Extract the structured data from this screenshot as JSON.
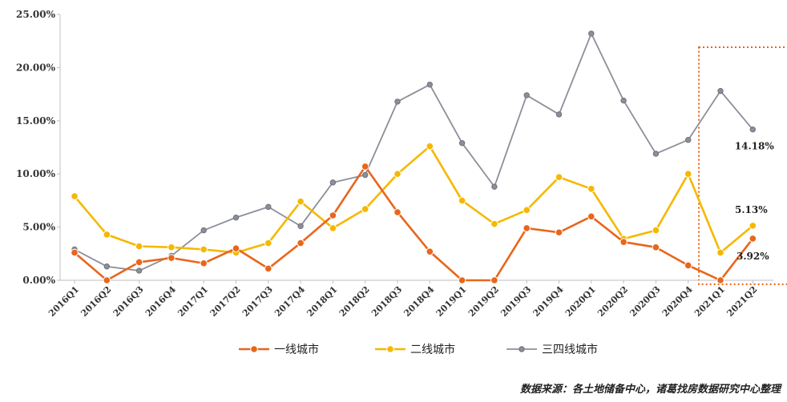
{
  "chart_data": {
    "type": "line",
    "categories": [
      "2016Q1",
      "2016Q2",
      "2016Q3",
      "2016Q4",
      "2017Q1",
      "2017Q2",
      "2017Q3",
      "2017Q4",
      "2018Q1",
      "2018Q2",
      "2018Q3",
      "2018Q4",
      "2019Q1",
      "2019Q2",
      "2019Q3",
      "2019Q4",
      "2020Q1",
      "2020Q2",
      "2020Q3",
      "2020Q4",
      "2021Q1",
      "2021Q2"
    ],
    "ylim": [
      0,
      25
    ],
    "yticks": [
      "0.00%",
      "5.00%",
      "10.00%",
      "15.00%",
      "20.00%",
      "25.00%"
    ],
    "ytick_values": [
      0,
      5,
      10,
      15,
      20,
      25
    ],
    "series": [
      {
        "name": "一线城市",
        "color": "#e8661c",
        "values": [
          2.6,
          0.0,
          1.7,
          2.1,
          1.6,
          3.0,
          1.1,
          3.5,
          6.1,
          10.7,
          6.4,
          2.7,
          0.0,
          0.0,
          4.9,
          4.5,
          6.0,
          3.6,
          3.1,
          1.4,
          0.0,
          3.92
        ]
      },
      {
        "name": "二线城市",
        "color": "#f5b800",
        "values": [
          7.9,
          4.3,
          3.2,
          3.1,
          2.9,
          2.6,
          3.5,
          7.4,
          4.9,
          6.7,
          10.0,
          12.6,
          7.5,
          5.3,
          6.6,
          9.7,
          8.6,
          3.9,
          4.7,
          10.0,
          2.6,
          5.13
        ]
      },
      {
        "name": "三四线城市",
        "color": "#8c8f99",
        "values": [
          2.9,
          1.3,
          0.9,
          2.3,
          4.7,
          5.9,
          6.9,
          5.1,
          9.2,
          9.9,
          16.8,
          18.4,
          12.9,
          8.8,
          17.4,
          15.6,
          23.2,
          16.9,
          11.9,
          13.2,
          17.8,
          14.18
        ]
      }
    ],
    "data_labels": [
      {
        "series": 2,
        "index": 21,
        "text": "14.18%"
      },
      {
        "series": 1,
        "index": 21,
        "text": "5.13%"
      },
      {
        "series": 0,
        "index": 21,
        "text": "3.92%"
      }
    ],
    "highlight": {
      "from_index": 20,
      "to_index": 21,
      "color": "#e8661c",
      "style": "dotted"
    },
    "legend_position": "bottom-center",
    "grid": false
  },
  "source_note": "数据来源：各土地储备中心，诸葛找房数据研究中心整理"
}
